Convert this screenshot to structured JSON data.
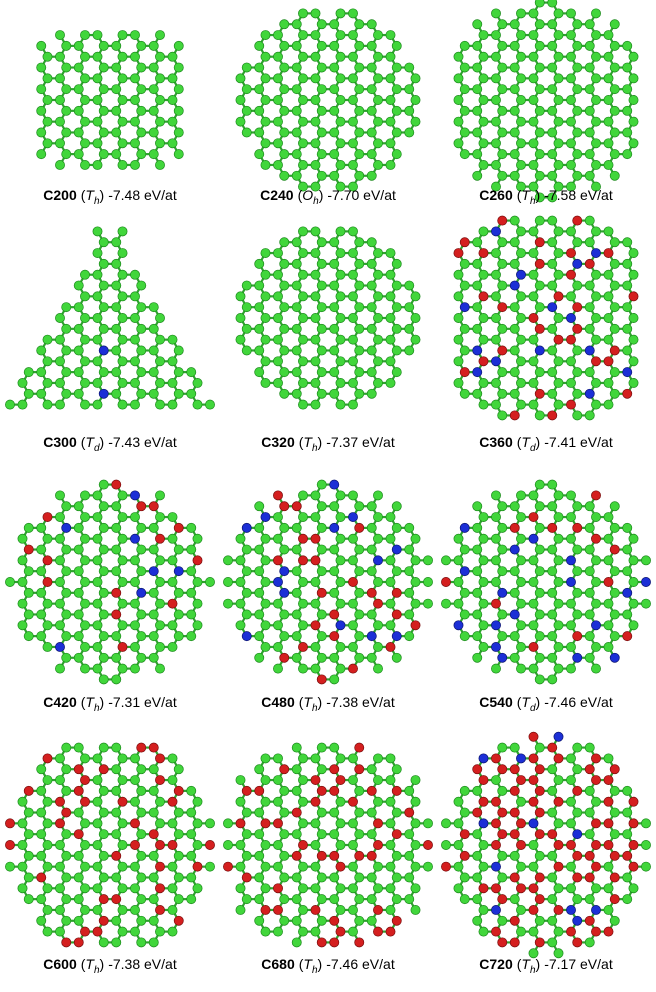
{
  "brackets": [
    "(",
    ")"
  ],
  "panels": [
    {
      "name": "C200",
      "symmetry": "T",
      "subscript": "h",
      "energy": "-7.48 eV/at"
    },
    {
      "name": "C240",
      "symmetry": "O",
      "subscript": "h",
      "energy": "-7.70 eV/at"
    },
    {
      "name": "C260",
      "symmetry": "T",
      "subscript": "h",
      "energy": "-7.58 eV/at"
    },
    {
      "name": "C300",
      "symmetry": "T",
      "subscript": "d",
      "energy": "-7.43 eV/at"
    },
    {
      "name": "C320",
      "symmetry": "T",
      "subscript": "h",
      "energy": "-7.37 eV/at"
    },
    {
      "name": "C360",
      "symmetry": "T",
      "subscript": "d",
      "energy": "-7.41 eV/at"
    },
    {
      "name": "C420",
      "symmetry": "T",
      "subscript": "h",
      "energy": "-7.31 eV/at"
    },
    {
      "name": "C480",
      "symmetry": "T",
      "subscript": "h",
      "energy": "-7.38 eV/at"
    },
    {
      "name": "C540",
      "symmetry": "T",
      "subscript": "d",
      "energy": "-7.46 eV/at"
    },
    {
      "name": "C600",
      "symmetry": "T",
      "subscript": "h",
      "energy": "-7.38 eV/at"
    },
    {
      "name": "C680",
      "symmetry": "T",
      "subscript": "h",
      "energy": "-7.46 eV/at"
    },
    {
      "name": "C720",
      "symmetry": "T",
      "subscript": "h",
      "energy": "-7.17 eV/at"
    }
  ]
}
